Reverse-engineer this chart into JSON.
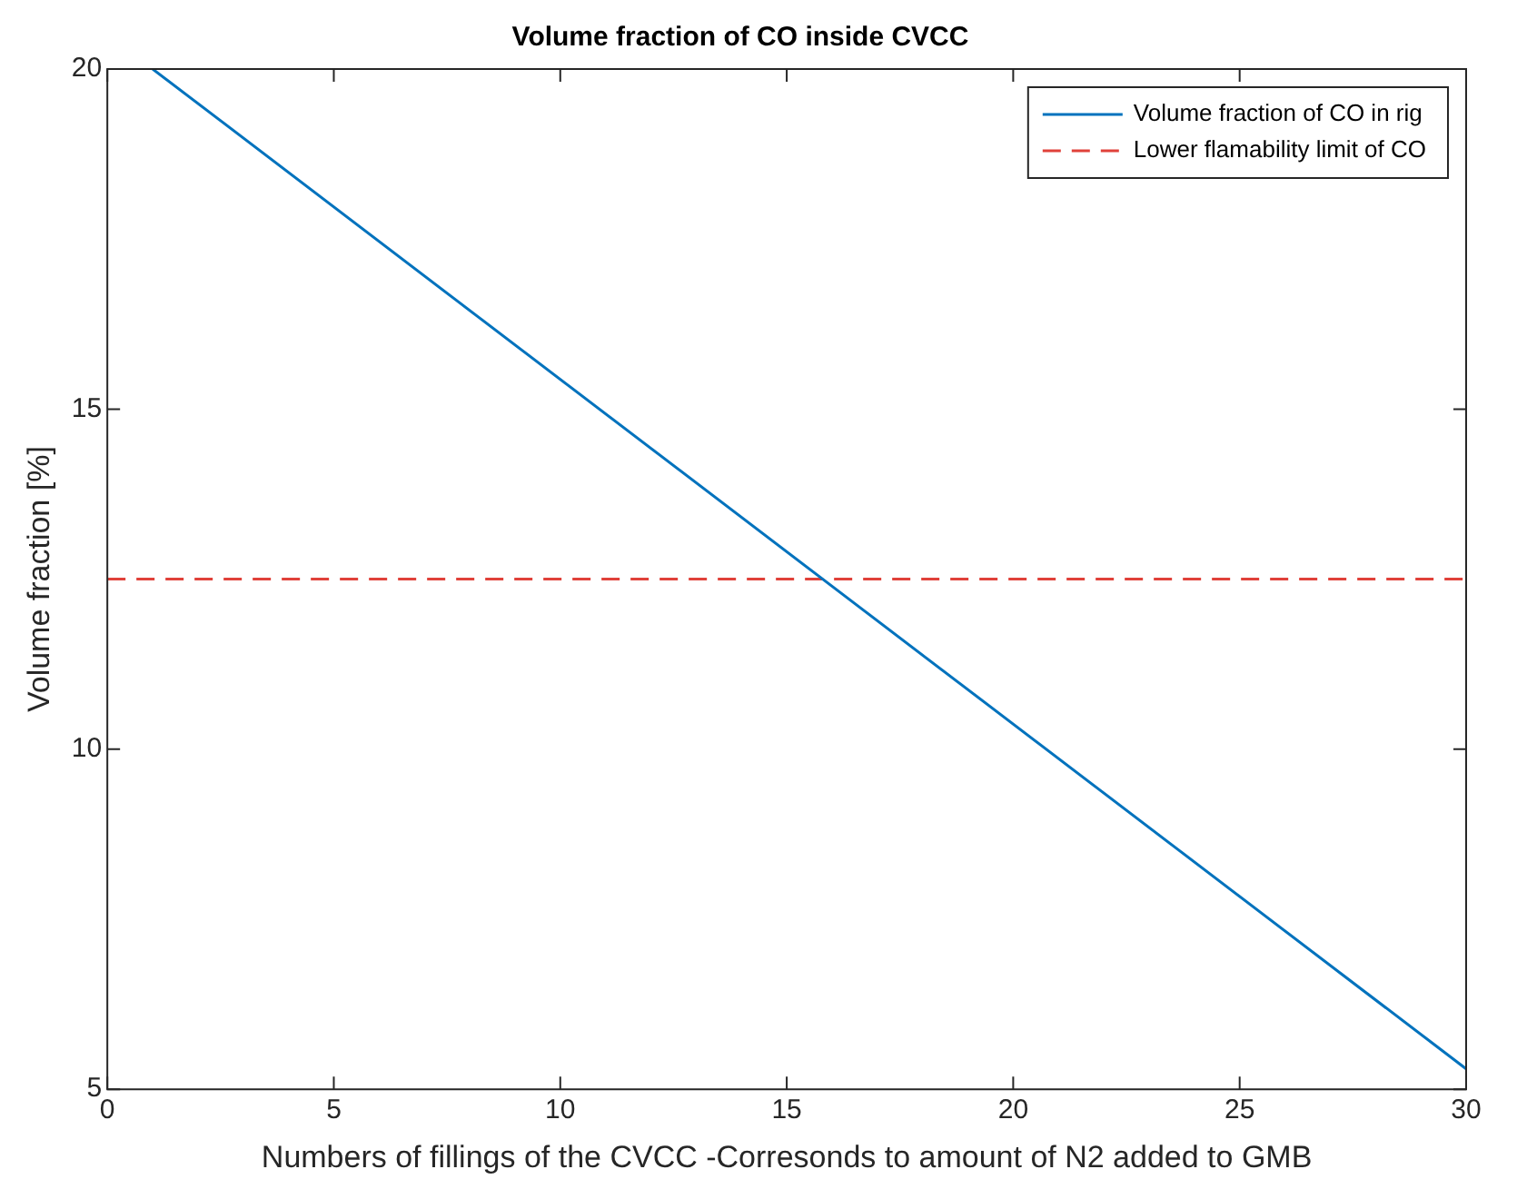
{
  "chart_data": {
    "type": "line",
    "title": "Volume fraction of CO inside CVCC",
    "xlabel": "Numbers of fillings of the CVCC -Corresonds to amount of N2 added to GMB",
    "ylabel": "Volume fraction [%]",
    "xlim": [
      0,
      30
    ],
    "ylim": [
      5,
      20
    ],
    "xticks": [
      0,
      5,
      10,
      15,
      20,
      25,
      30
    ],
    "yticks": [
      5,
      10,
      15,
      20
    ],
    "grid": false,
    "legend": "top right",
    "series": [
      {
        "name": "Volume fraction of CO in rig",
        "color": "#0072bd",
        "x": [
          1,
          30
        ],
        "values": [
          20,
          5.3
        ],
        "line_style": "solid"
      },
      {
        "name": "Lower flamability limit of CO",
        "color": "#e0413a",
        "x": [
          0,
          30
        ],
        "values": [
          12.5,
          12.5
        ],
        "line_style": "dashed"
      }
    ]
  }
}
